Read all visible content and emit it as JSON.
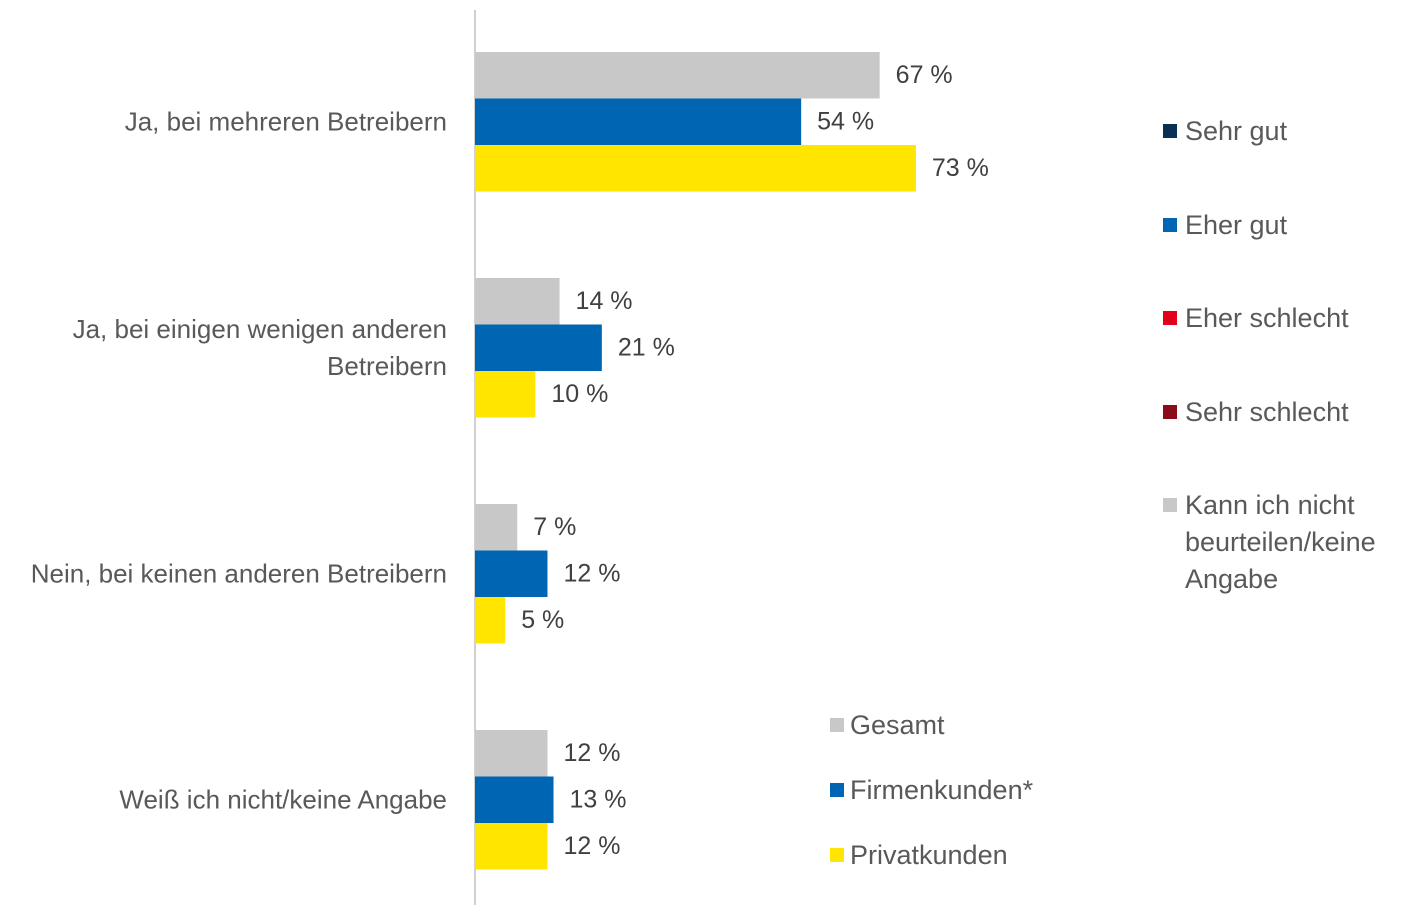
{
  "chart_data": {
    "type": "bar",
    "orientation": "horizontal",
    "categories": [
      "Ja, bei mehreren Betreibern",
      "Ja, bei einigen wenigen anderen Betreibern",
      "Nein, bei keinen anderen Betreibern",
      "Weiß ich nicht/keine Angabe"
    ],
    "series": [
      {
        "name": "Gesamt",
        "color": "#c8c8c8",
        "values": [
          67,
          14,
          7,
          12
        ],
        "value_labels": [
          "67 %",
          "14 %",
          "7 %",
          "12 %"
        ]
      },
      {
        "name": "Firmenkunden*",
        "color": "#0066b3",
        "values": [
          54,
          21,
          12,
          13
        ],
        "value_labels": [
          "54 %",
          "21 %",
          "12 %",
          "13 %"
        ]
      },
      {
        "name": "Privatkunden",
        "color": "#ffe500",
        "values": [
          73,
          10,
          5,
          12
        ],
        "value_labels": [
          "73 %",
          "10 %",
          "5 %",
          "12 %"
        ]
      }
    ],
    "xlim": [
      0,
      100
    ],
    "extra_legend": [
      {
        "name": "Sehr gut",
        "color": "#0a3055"
      },
      {
        "name": "Eher gut",
        "color": "#0066b3"
      },
      {
        "name": "Eher schlecht",
        "color": "#e2001a"
      },
      {
        "name": "Sehr schlecht",
        "color": "#8b0d1c"
      },
      {
        "name": "Kann ich nicht beurteilen/keine Angabe",
        "color": "#c8c8c8"
      }
    ]
  }
}
